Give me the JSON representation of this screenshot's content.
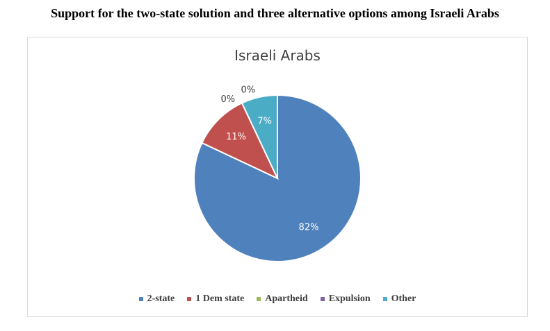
{
  "page_title": "Support for the two-state solution and three alternative options among Israeli Arabs",
  "chart_data": {
    "type": "pie",
    "title": "Israeli Arabs",
    "categories": [
      "2-state",
      "1 Dem state",
      "Apartheid",
      "Expulsion",
      "Other"
    ],
    "values": [
      82,
      11,
      0,
      0,
      7
    ],
    "labels": [
      "82%",
      "11%",
      "0%",
      "0%",
      "7%"
    ],
    "colors": [
      "#4f81bd",
      "#c0504d",
      "#9bbb59",
      "#8064a2",
      "#4bacc6"
    ],
    "legend_position": "bottom"
  }
}
